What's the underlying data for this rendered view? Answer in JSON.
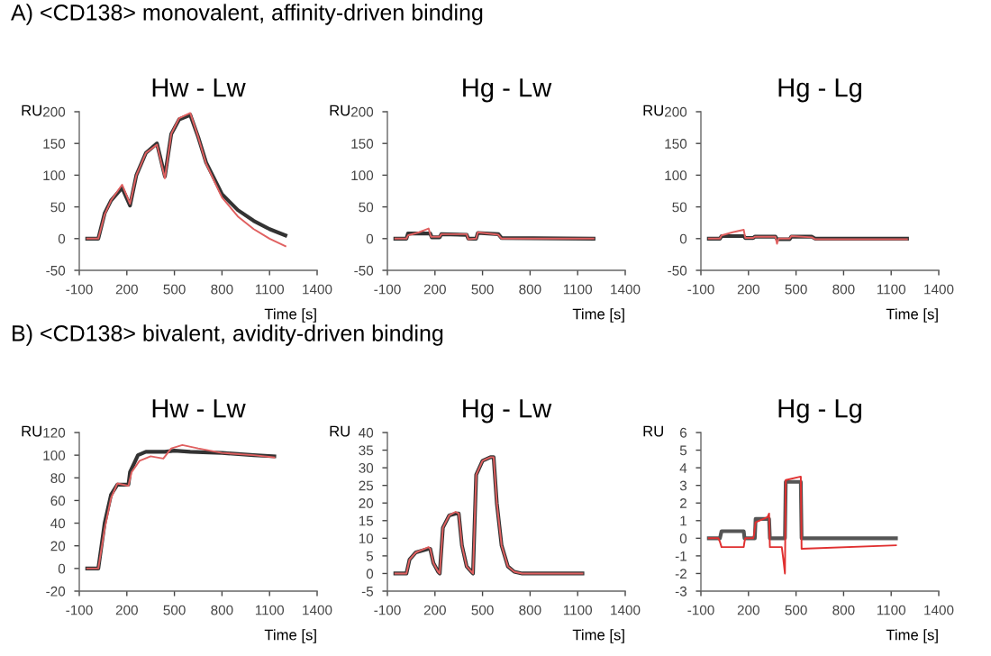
{
  "chart_data": [
    {
      "type": "line",
      "title": "Hw - Lw",
      "ylabel": "RU",
      "xlabel": "Time [s]",
      "annotations": [
        "A) <CD138> monovalent, affinity-driven binding"
      ],
      "xlim": [
        -100,
        1400
      ],
      "xticks": [
        -100,
        200,
        500,
        800,
        1100,
        1400
      ],
      "ylim": [
        -50,
        200
      ],
      "yticks": [
        -50,
        0,
        50,
        100,
        150,
        200
      ],
      "grid": false,
      "legend": false,
      "series": [
        {
          "color": "#e06060",
          "x": [
            -50,
            20,
            60,
            100,
            170,
            220,
            260,
            320,
            390,
            440,
            480,
            530,
            600,
            650,
            700,
            800,
            900,
            1000,
            1100,
            1200
          ],
          "values": [
            0,
            0,
            38,
            60,
            85,
            55,
            100,
            135,
            148,
            95,
            165,
            190,
            198,
            160,
            118,
            65,
            35,
            15,
            0,
            -12
          ]
        },
        {
          "color": "#333333",
          "x": [
            -50,
            20,
            60,
            100,
            170,
            220,
            260,
            320,
            390,
            440,
            480,
            530,
            600,
            650,
            700,
            800,
            900,
            1000,
            1100,
            1200
          ],
          "values": [
            0,
            0,
            40,
            60,
            80,
            52,
            100,
            135,
            150,
            98,
            165,
            188,
            195,
            160,
            120,
            70,
            45,
            28,
            15,
            5
          ]
        }
      ]
    },
    {
      "type": "line",
      "title": "Hg - Lw",
      "ylabel": "RU",
      "xlabel": "Time [s]",
      "xlim": [
        -100,
        1400
      ],
      "xticks": [
        -100,
        200,
        500,
        800,
        1100,
        1400
      ],
      "ylim": [
        -50,
        200
      ],
      "yticks": [
        -50,
        0,
        50,
        100,
        150,
        200
      ],
      "grid": false,
      "legend": false,
      "series": [
        {
          "color": "#e06060",
          "x": [
            -50,
            20,
            30,
            100,
            160,
            175,
            230,
            240,
            400,
            410,
            460,
            470,
            600,
            620,
            1200
          ],
          "values": [
            0,
            0,
            5,
            10,
            16,
            3,
            3,
            7,
            7,
            -1,
            0,
            10,
            6,
            0,
            0
          ]
        },
        {
          "color": "#333333",
          "x": [
            -50,
            20,
            30,
            170,
            180,
            230,
            240,
            400,
            410,
            460,
            470,
            600,
            620,
            1200
          ],
          "values": [
            0,
            0,
            8,
            8,
            2,
            2,
            7,
            6,
            0,
            0,
            9,
            7,
            1,
            0
          ]
        }
      ]
    },
    {
      "type": "line",
      "title": "Hg - Lg",
      "ylabel": "RU",
      "xlabel": "Time [s]",
      "xlim": [
        -100,
        1400
      ],
      "xticks": [
        -100,
        200,
        500,
        800,
        1100,
        1400
      ],
      "ylim": [
        -50,
        200
      ],
      "yticks": [
        -50,
        0,
        50,
        100,
        150,
        200
      ],
      "grid": false,
      "legend": false,
      "series": [
        {
          "color": "#e06060",
          "x": [
            -50,
            20,
            30,
            100,
            170,
            180,
            230,
            240,
            370,
            380,
            390,
            460,
            470,
            600,
            620,
            1200
          ],
          "values": [
            0,
            0,
            5,
            10,
            14,
            1,
            1,
            3,
            3,
            -8,
            0,
            0,
            4,
            2,
            -1,
            -1
          ]
        },
        {
          "color": "#333333",
          "x": [
            -50,
            20,
            30,
            170,
            180,
            230,
            240,
            370,
            380,
            460,
            470,
            600,
            620,
            1200
          ],
          "values": [
            0,
            0,
            4,
            4,
            1,
            1,
            3,
            3,
            -1,
            -1,
            3,
            3,
            0,
            0
          ]
        }
      ]
    },
    {
      "type": "line",
      "title": "Hw - Lw",
      "ylabel": "RU",
      "xlabel": "Time [s]",
      "annotations": [
        "B) <CD138> bivalent, avidity-driven binding"
      ],
      "xlim": [
        -100,
        1400
      ],
      "xticks": [
        -100,
        200,
        500,
        800,
        1100,
        1400
      ],
      "ylim": [
        -20,
        120
      ],
      "yticks": [
        -20,
        0,
        20,
        40,
        60,
        80,
        100,
        120
      ],
      "grid": false,
      "legend": false,
      "series": [
        {
          "color": "#e06060",
          "x": [
            -50,
            20,
            60,
            100,
            140,
            210,
            230,
            280,
            350,
            430,
            480,
            550,
            650,
            800,
            1000,
            1130
          ],
          "values": [
            0,
            0,
            35,
            62,
            75,
            73,
            85,
            95,
            99,
            97,
            106,
            109,
            106,
            102,
            100,
            98
          ]
        },
        {
          "color": "#333333",
          "x": [
            -50,
            20,
            60,
            100,
            140,
            210,
            220,
            270,
            320,
            440,
            500,
            600,
            800,
            1000,
            1130
          ],
          "values": [
            0,
            0,
            40,
            65,
            74,
            74,
            85,
            100,
            103,
            103,
            104,
            103,
            102,
            100,
            99
          ]
        }
      ]
    },
    {
      "type": "line",
      "title": "Hg - Lw",
      "ylabel": "RU",
      "xlabel": "Time [s]",
      "xlim": [
        -100,
        1400
      ],
      "xticks": [
        -100,
        200,
        500,
        800,
        1100,
        1400
      ],
      "ylim": [
        -5,
        40
      ],
      "yticks": [
        -5,
        0,
        5,
        10,
        15,
        20,
        25,
        30,
        35,
        40
      ],
      "grid": false,
      "legend": false,
      "series": [
        {
          "color": "#e06060",
          "x": [
            -50,
            20,
            40,
            80,
            160,
            170,
            190,
            220,
            230,
            250,
            290,
            330,
            350,
            370,
            400,
            430,
            440,
            460,
            500,
            550,
            570,
            590,
            620,
            660,
            700,
            750,
            1130
          ],
          "values": [
            0,
            0,
            4,
            6,
            7.5,
            7,
            3,
            0.5,
            0,
            13,
            16.5,
            17.5,
            17,
            8,
            2,
            0.5,
            0,
            28,
            32,
            33,
            33,
            20,
            8,
            2,
            0.5,
            0,
            0
          ]
        },
        {
          "color": "#333333",
          "x": [
            -50,
            20,
            40,
            80,
            160,
            170,
            190,
            220,
            230,
            250,
            290,
            330,
            350,
            370,
            400,
            430,
            440,
            460,
            500,
            550,
            570,
            590,
            620,
            660,
            700,
            750,
            1130
          ],
          "values": [
            0,
            0,
            4,
            6,
            7,
            7,
            3,
            0.5,
            0,
            13,
            16.5,
            17,
            17,
            8,
            2,
            0.5,
            0,
            28,
            32,
            33,
            33,
            20,
            8,
            2,
            0.5,
            0,
            0
          ]
        }
      ]
    },
    {
      "type": "line",
      "title": "Hg - Lg",
      "ylabel": "RU",
      "xlabel": "Time [s]",
      "xlim": [
        -100,
        1400
      ],
      "xticks": [
        -100,
        200,
        500,
        800,
        1100,
        1400
      ],
      "ylim": [
        -3,
        6
      ],
      "yticks": [
        -3,
        -2,
        -1,
        0,
        1,
        2,
        3,
        4,
        5,
        6
      ],
      "grid": false,
      "legend": false,
      "series": [
        {
          "color": "#e03030",
          "x": [
            -50,
            10,
            20,
            30,
            170,
            175,
            180,
            230,
            235,
            245,
            320,
            330,
            335,
            410,
            420,
            430,
            435,
            530,
            535,
            1130
          ],
          "values": [
            0,
            0,
            -0.2,
            -0.5,
            -0.5,
            -0.2,
            0,
            0,
            0.2,
            0.9,
            1.2,
            1.4,
            -0.5,
            -0.5,
            -1.2,
            -2.0,
            3.3,
            3.5,
            -0.6,
            -0.4
          ]
        },
        {
          "color": "#555555",
          "x": [
            -50,
            20,
            30,
            170,
            175,
            240,
            245,
            330,
            335,
            430,
            435,
            530,
            535,
            1130
          ],
          "values": [
            0,
            0,
            0.4,
            0.4,
            0,
            0,
            1.1,
            1.1,
            0,
            0,
            3.2,
            3.2,
            0,
            0
          ]
        }
      ]
    }
  ]
}
